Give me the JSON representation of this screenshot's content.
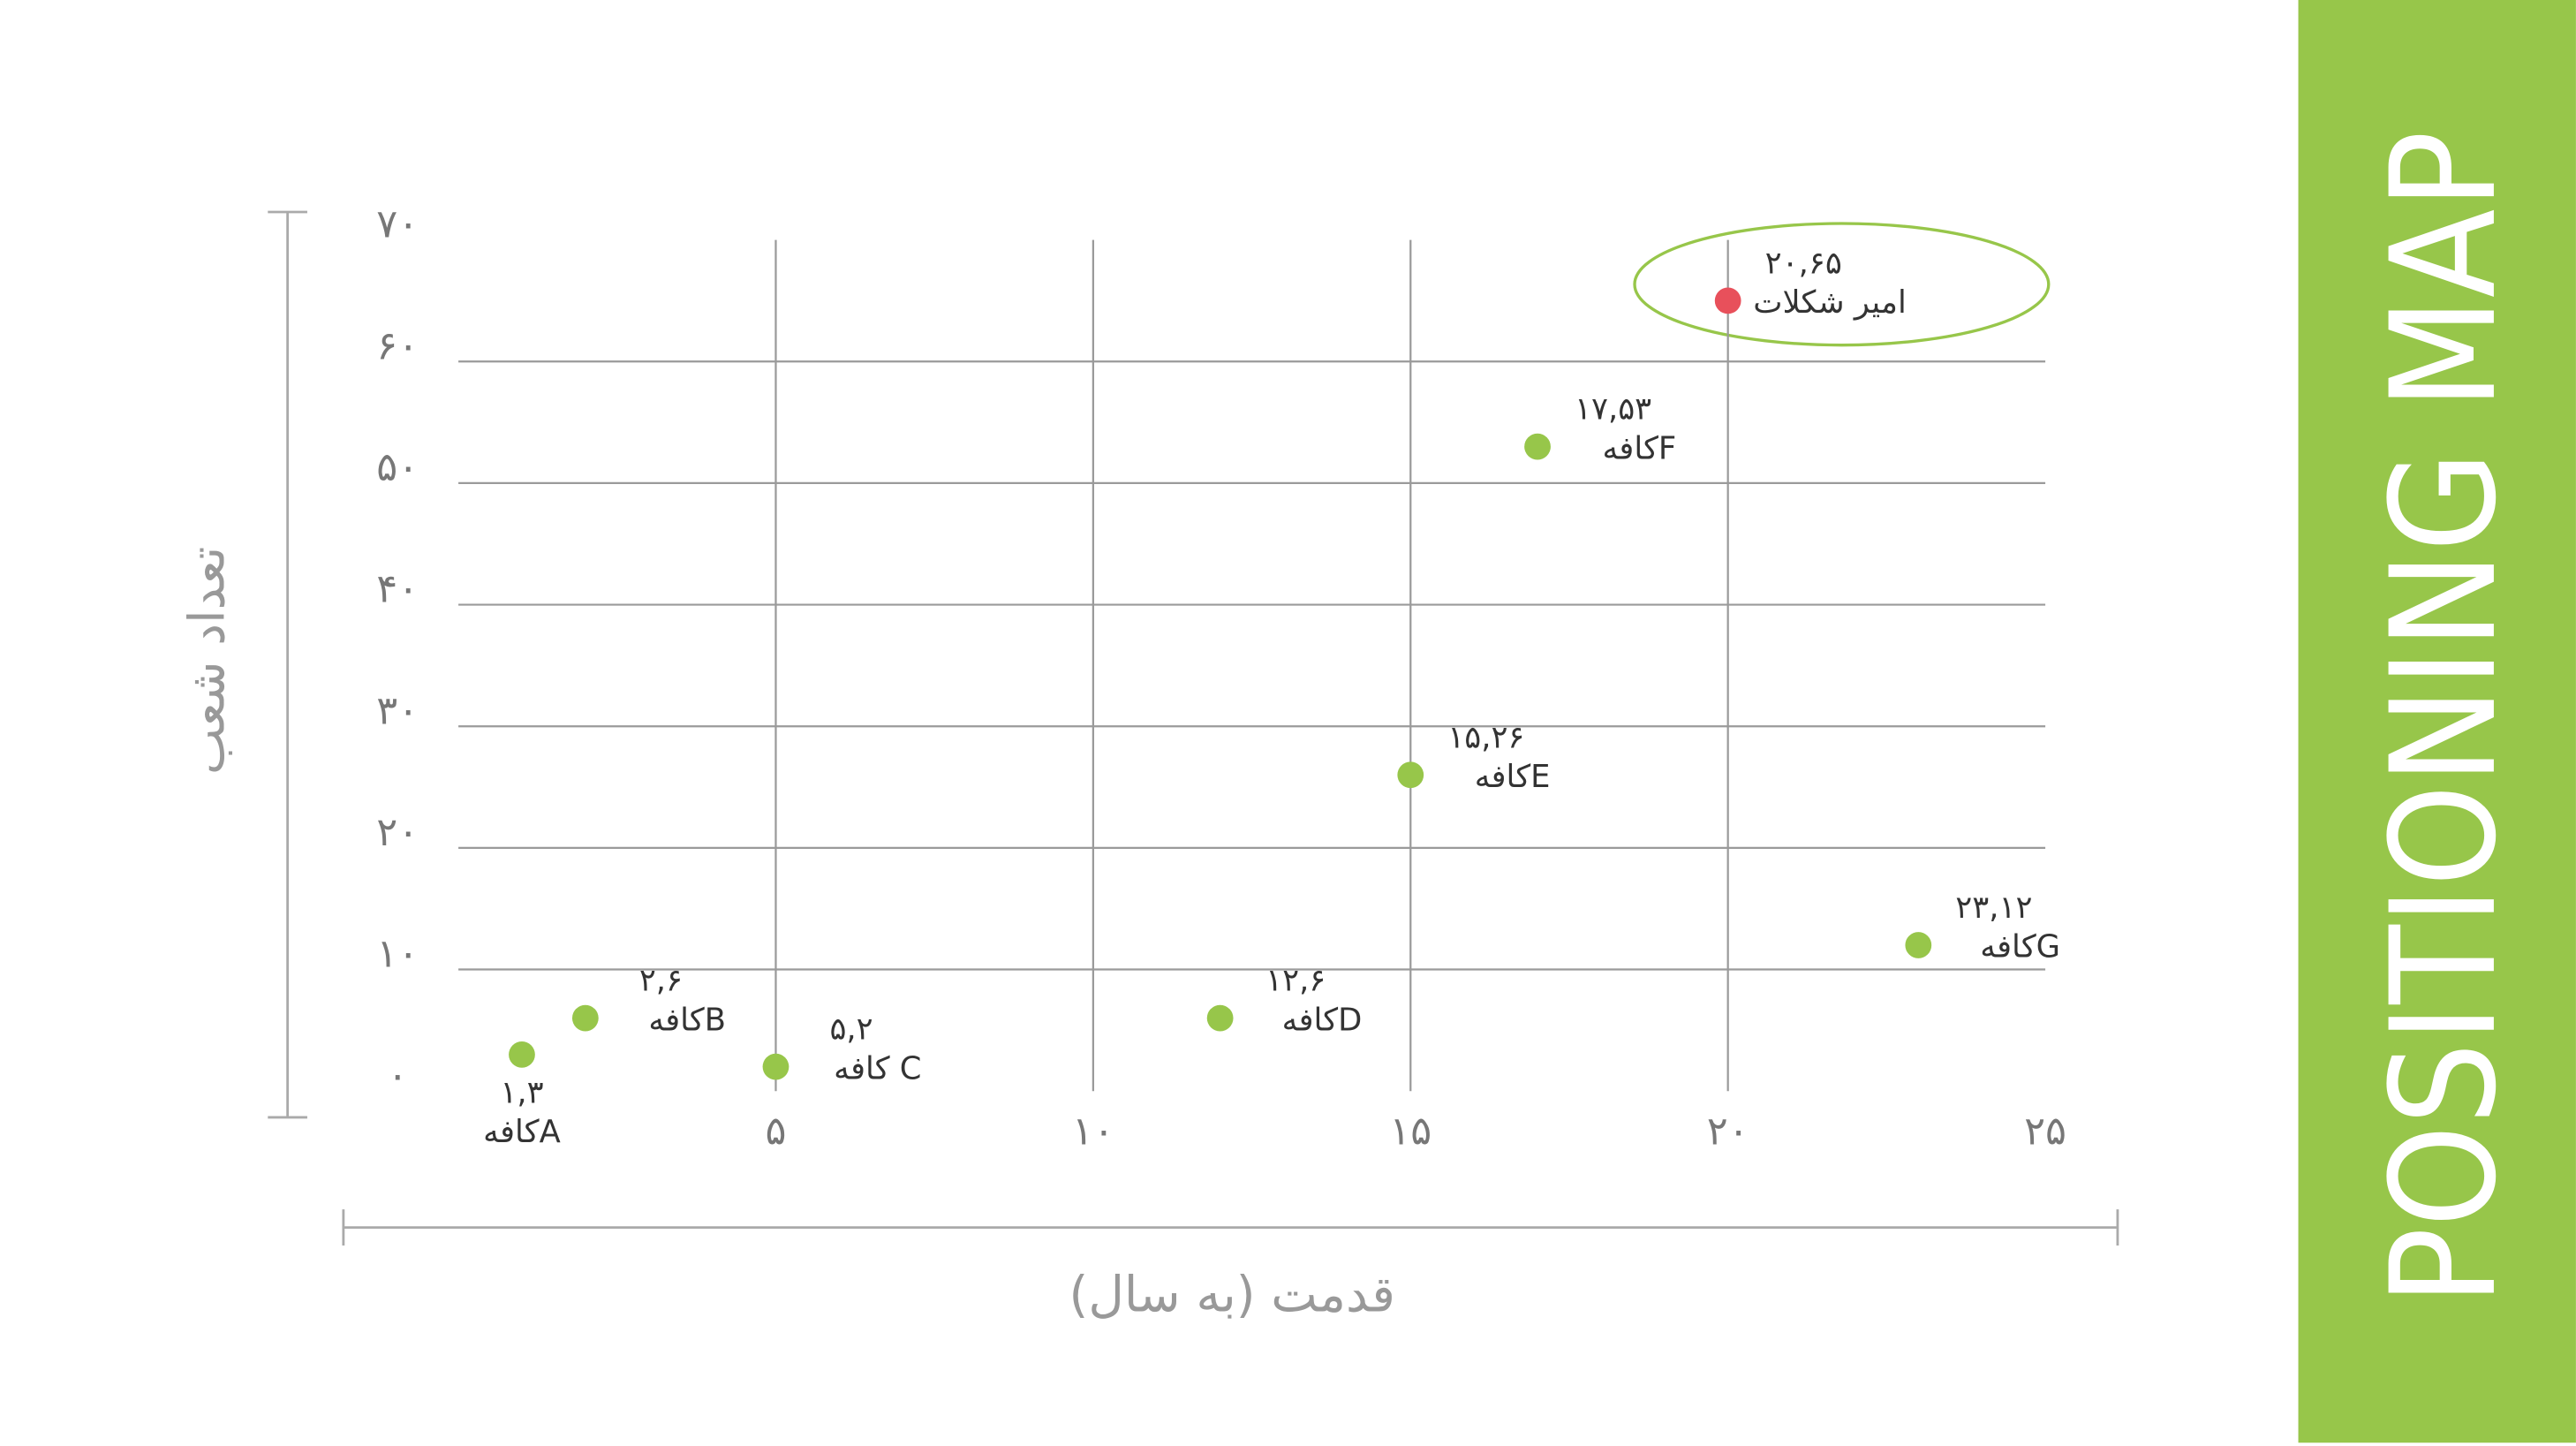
{
  "chart_data": {
    "type": "scatter",
    "side_title": "POSITIONING MAP",
    "x_label": "قدمت (به سال)",
    "y_label": "تعداد شعب",
    "names": [
      "کافهA",
      "کافهB",
      "کافه C",
      "کافهD",
      "کافهE",
      "کافهF",
      "امیر شکلات",
      "کافهG"
    ],
    "x": [
      1,
      2,
      5,
      12,
      15,
      17,
      20,
      23
    ],
    "values": [
      3,
      6,
      2,
      6,
      26,
      53,
      65,
      12
    ],
    "value_labels": [
      "۱,۳",
      "۲,۶",
      "۵,۲",
      "۱۲,۶",
      "۱۵,۲۶",
      "۱۷,۵۳",
      "۲۰,۶۵",
      "۲۳,۱۲"
    ],
    "colors": [
      "#97c64a",
      "#97c64a",
      "#97c64a",
      "#97c64a",
      "#97c64a",
      "#97c64a",
      "#e8505b",
      "#97c64a"
    ],
    "xlim": [
      0,
      25
    ],
    "ylim": [
      0,
      70
    ],
    "xticks": [
      {
        "value": 5,
        "label": "۵"
      },
      {
        "value": 10,
        "label": "۱۰"
      },
      {
        "value": 15,
        "label": "۱۵"
      },
      {
        "value": 20,
        "label": "۲۰"
      },
      {
        "value": 25,
        "label": "۲۵"
      }
    ],
    "yticks": [
      {
        "value": 0,
        "label": "۰"
      },
      {
        "value": 10,
        "label": "۱۰"
      },
      {
        "value": 20,
        "label": "۲۰"
      },
      {
        "value": 30,
        "label": "۳۰"
      },
      {
        "value": 40,
        "label": "۴۰"
      },
      {
        "value": 50,
        "label": "۵۰"
      },
      {
        "value": 60,
        "label": "۶۰"
      },
      {
        "value": 70,
        "label": "۷۰"
      }
    ],
    "grid": true
  }
}
